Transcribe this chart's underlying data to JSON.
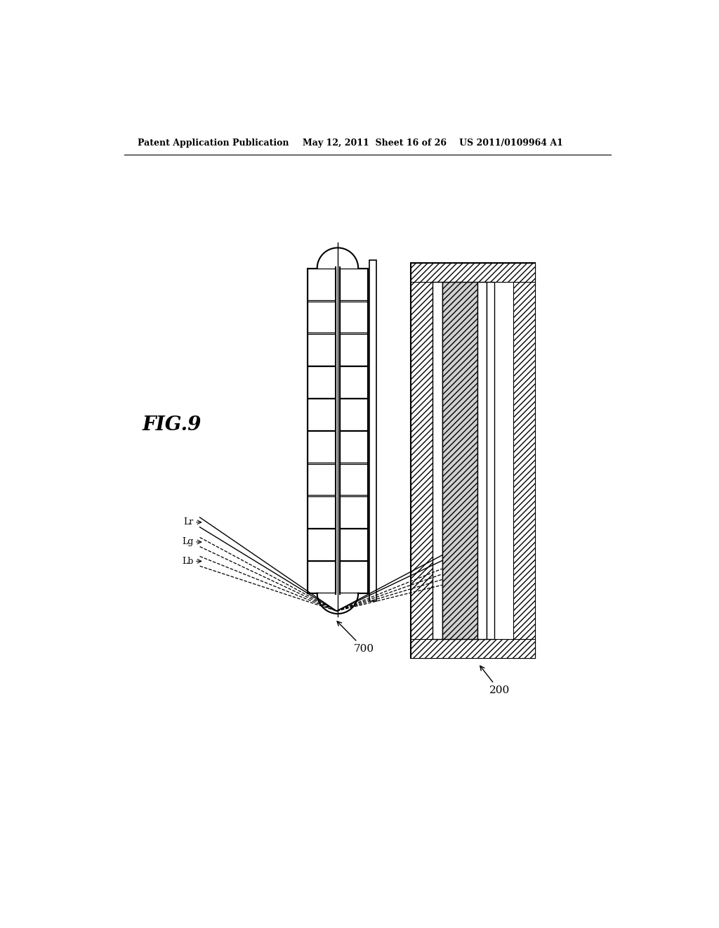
{
  "title_left": "Patent Application Publication",
  "title_mid": "May 12, 2011  Sheet 16 of 26",
  "title_right": "US 2011/0109964 A1",
  "fig_label": "FIG.9",
  "label_700": "700",
  "label_200": "200",
  "label_Lr": "Lr",
  "label_Lg": "Lg",
  "label_Lb": "Lb",
  "bg_color": "#ffffff",
  "line_color": "#000000"
}
